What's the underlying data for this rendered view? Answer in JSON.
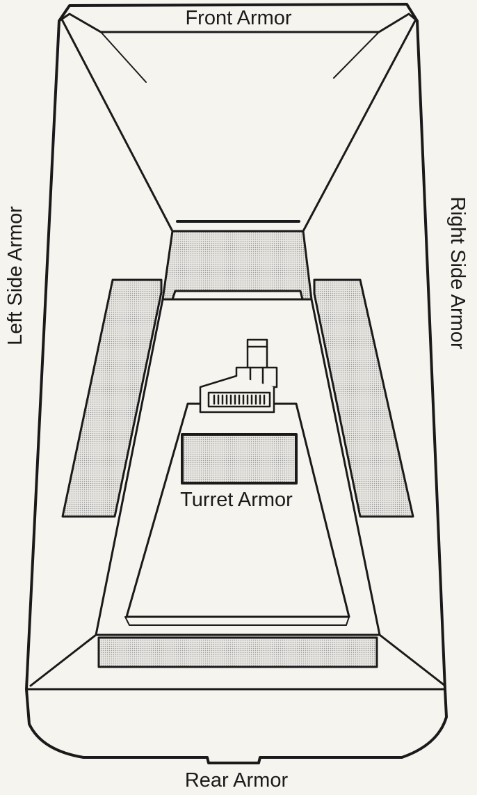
{
  "labels": {
    "front": "Front Armor",
    "rear": "Rear Armor",
    "left": "Left Side Armor",
    "right": "Right Side Armor",
    "turret": "Turret Armor"
  },
  "colors": {
    "ink": "#1a1a1a",
    "paper": "#f6f4ef",
    "shade_dot": "#9a9a9a"
  }
}
